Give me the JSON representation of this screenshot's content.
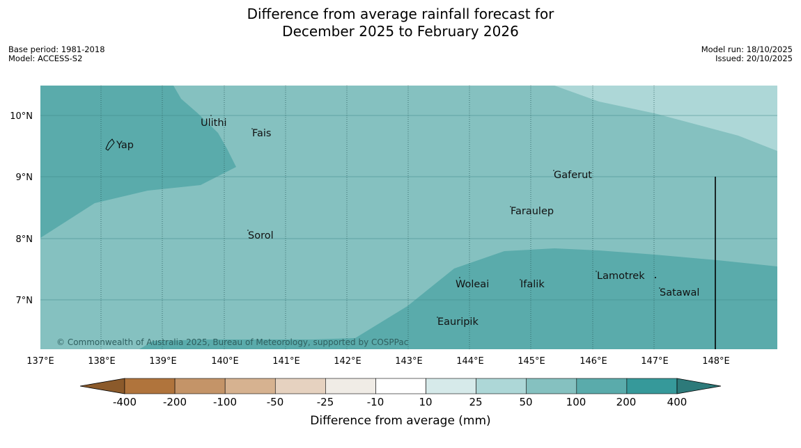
{
  "title": {
    "line1": "Difference from average rainfall forecast for",
    "line2": "December 2025 to February 2026"
  },
  "metadata": {
    "base_period": "Base period: 1981-2018",
    "model": "Model: ACCESS-S2",
    "model_run": "Model run: 18/10/2025",
    "issued": "Issued: 20/10/2025"
  },
  "map": {
    "lat_labels": [
      "10°N",
      "9°N",
      "8°N",
      "7°N"
    ],
    "lon_labels": [
      "137°E",
      "138°E",
      "139°E",
      "140°E",
      "141°E",
      "142°E",
      "143°E",
      "144°E",
      "145°E",
      "146°E",
      "147°E",
      "148°E"
    ],
    "places": [
      "Ulithi",
      "Fais",
      "Yap",
      "Gaferut",
      "Faraulep",
      "Sorol",
      "Lamotrek",
      "Woleai",
      "Ifalik",
      "Satawal",
      "Eauripik"
    ],
    "copyright": "© Commonwealth of Australia 2025, Bureau of Meteorology, supported by COSPPac"
  },
  "legend": {
    "ticks": [
      "-400",
      "-200",
      "-100",
      "-50",
      "-25",
      "-10",
      "10",
      "25",
      "50",
      "100",
      "200",
      "400"
    ],
    "label": "Difference from average (mm)",
    "colors": {
      "below_min": "#8b5a2b",
      "bins": [
        "#b0743c",
        "#c49468",
        "#d6b290",
        "#e6d2c0",
        "#f0ece6",
        "#ffffff",
        "#d6eaea",
        "#add7d7",
        "#85c1c0",
        "#5aabab",
        "#36999a"
      ],
      "above_max": "#2d7a7a"
    }
  }
}
